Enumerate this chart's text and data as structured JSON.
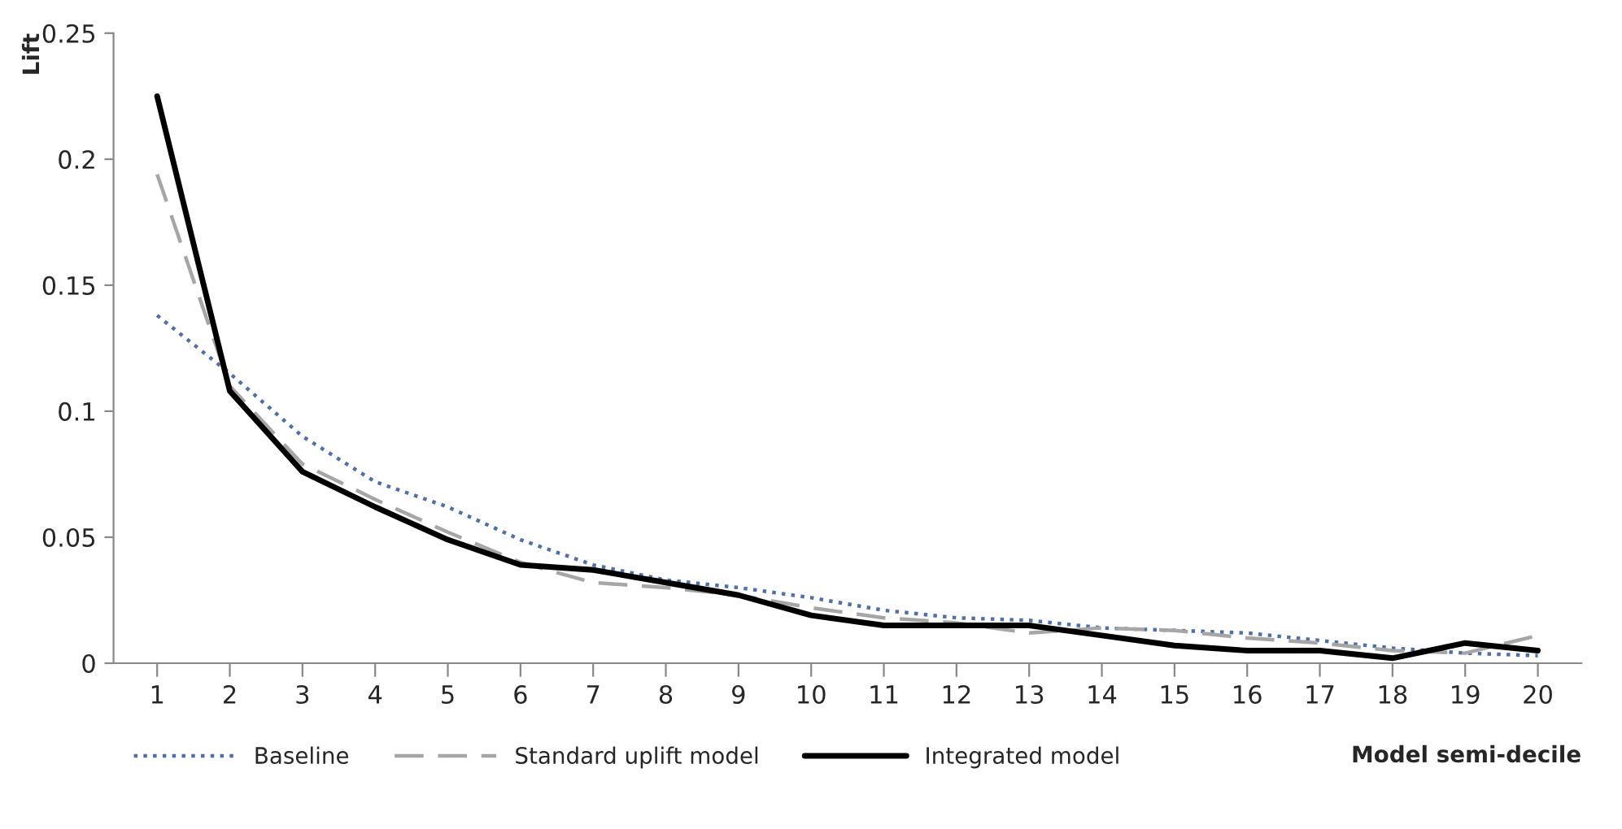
{
  "chart_data": {
    "type": "line",
    "xlabel": "Model semi-decile",
    "ylabel": "Lift",
    "categories": [
      "1",
      "2",
      "3",
      "4",
      "5",
      "6",
      "7",
      "8",
      "9",
      "10",
      "11",
      "12",
      "13",
      "14",
      "15",
      "16",
      "17",
      "18",
      "19",
      "20"
    ],
    "series": [
      {
        "name": "Baseline",
        "color": "#4f6fa8",
        "line_style": "dotted",
        "values": [
          0.138,
          0.115,
          0.09,
          0.072,
          0.062,
          0.049,
          0.039,
          0.033,
          0.03,
          0.026,
          0.021,
          0.018,
          0.017,
          0.014,
          0.013,
          0.012,
          0.009,
          0.006,
          0.004,
          0.003
        ]
      },
      {
        "name": "Standard uplift model",
        "color": "#a6a6a6",
        "line_style": "dashed",
        "values": [
          0.194,
          0.11,
          0.079,
          0.065,
          0.052,
          0.04,
          0.032,
          0.03,
          0.027,
          0.022,
          0.018,
          0.016,
          0.012,
          0.014,
          0.013,
          0.01,
          0.008,
          0.005,
          0.004,
          0.011
        ]
      },
      {
        "name": "Integrated model",
        "color": "#000000",
        "line_style": "solid",
        "values": [
          0.225,
          0.108,
          0.076,
          0.062,
          0.049,
          0.039,
          0.037,
          0.032,
          0.027,
          0.019,
          0.015,
          0.015,
          0.015,
          0.011,
          0.007,
          0.005,
          0.005,
          0.002,
          0.008,
          0.005
        ]
      }
    ],
    "ylim": [
      0,
      0.25
    ],
    "yticks": [
      0,
      0.05,
      0.1,
      0.15,
      0.2,
      0.25
    ],
    "grid": false,
    "legend": "bottom",
    "marker": "none"
  }
}
